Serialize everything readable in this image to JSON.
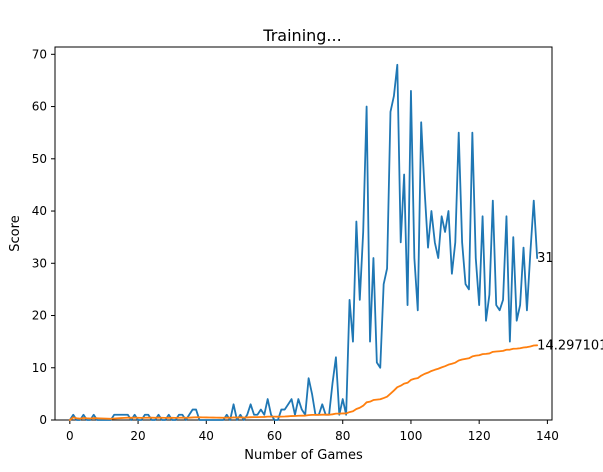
{
  "chart_data": {
    "type": "line",
    "title": "Training...",
    "xlabel": "Number of Games",
    "ylabel": "Score",
    "xlim": [
      -4.35,
      141.35
    ],
    "ylim": [
      0,
      71.4
    ],
    "xticks": [
      0,
      20,
      40,
      60,
      80,
      100,
      120,
      140
    ],
    "yticks": [
      0,
      10,
      20,
      30,
      40,
      50,
      60,
      70
    ],
    "grid": false,
    "legend": "none",
    "series": [
      {
        "color": "#1f77b4",
        "values": [
          0,
          1,
          0,
          0,
          1,
          0,
          0,
          1,
          0,
          0,
          0,
          0,
          0,
          1,
          1,
          1,
          1,
          1,
          0,
          1,
          0,
          0,
          1,
          1,
          0,
          0,
          1,
          0,
          0,
          1,
          0,
          0,
          1,
          1,
          0,
          1,
          2,
          2,
          0,
          0,
          0,
          0,
          0,
          0,
          0,
          0,
          1,
          0,
          3,
          0,
          1,
          0,
          1,
          3,
          1,
          1,
          2,
          1,
          4,
          1,
          0,
          0,
          2,
          2,
          3,
          4,
          1,
          4,
          2,
          1,
          8,
          5,
          1,
          1,
          3,
          1,
          1,
          7,
          12,
          1,
          4,
          1,
          23,
          15,
          38,
          23,
          36,
          60,
          15,
          31,
          11,
          10,
          26,
          29,
          59,
          62,
          68,
          34,
          47,
          22,
          63,
          31,
          21,
          57,
          44,
          33,
          40,
          34,
          31,
          39,
          36,
          40,
          28,
          34,
          55,
          34,
          26,
          25,
          55,
          31,
          22,
          39,
          19,
          24,
          42,
          22,
          21,
          23,
          39,
          15,
          35,
          19,
          22,
          33,
          21,
          32,
          42,
          31
        ],
        "end_label": "31"
      },
      {
        "color": "#ff7f0e",
        "values": [
          0,
          0.5,
          0.3333333,
          0.25,
          0.4,
          0.3333333,
          0.2857143,
          0.375,
          0.3333333,
          0.3,
          0.2727273,
          0.25,
          0.2307692,
          0.2857143,
          0.3333333,
          0.375,
          0.4117647,
          0.4444444,
          0.4210526,
          0.45,
          0.4285714,
          0.4090909,
          0.4347826,
          0.4583333,
          0.44,
          0.4230769,
          0.4444444,
          0.4285714,
          0.4137931,
          0.4333333,
          0.4193548,
          0.40625,
          0.4242424,
          0.4411765,
          0.4285714,
          0.4444444,
          0.4864865,
          0.5263158,
          0.5128205,
          0.5,
          0.4878049,
          0.4761905,
          0.4651163,
          0.4545455,
          0.4444444,
          0.4347826,
          0.4468085,
          0.4375,
          0.4897959,
          0.48,
          0.4901961,
          0.4807692,
          0.490566,
          0.537037,
          0.5454545,
          0.5535714,
          0.5789474,
          0.5862069,
          0.6440678,
          0.65,
          0.6393443,
          0.6290323,
          0.6507937,
          0.671875,
          0.7076923,
          0.7575758,
          0.761194,
          0.8088235,
          0.826087,
          0.8285714,
          0.9295775,
          0.9861111,
          0.9863014,
          0.9864865,
          1.0133333,
          1.0131579,
          1.012987,
          1.0897436,
          1.2278481,
          1.225,
          1.2592593,
          1.2560976,
          1.5180723,
          1.6785714,
          2.1058824,
          2.3488372,
          2.7356322,
          3.3863636,
          3.5168539,
          3.8222222,
          3.9010989,
          3.9673913,
          4.2043011,
          4.4680851,
          5.0421053,
          5.6354167,
          6.2783505,
          6.5612245,
          6.969697,
          7.12,
          7.6732673,
          7.8970588,
          8.0194175,
          8.4903846,
          8.8285714,
          9.0660377,
          9.3831776,
          9.6111111,
          9.8073394,
          10.0727273,
          10.3063063,
          10.5892857,
          10.7610619,
          10.9736842,
          11.3826087,
          11.5775862,
          11.7008547,
          11.8135593,
          12.1680672,
          12.3166667,
          12.3884298,
          12.6065574,
          12.6544715,
          12.7419355,
          13.048,
          13.1111111,
          13.1653543,
          13.234375,
          13.4496124,
          13.4615385,
          13.6335878,
          13.6666667,
          13.7368421,
          13.880597,
          13.9407407,
          14.0735294,
          14.2627737,
          14.297101
        ],
        "end_label": "14.297101"
      }
    ]
  }
}
